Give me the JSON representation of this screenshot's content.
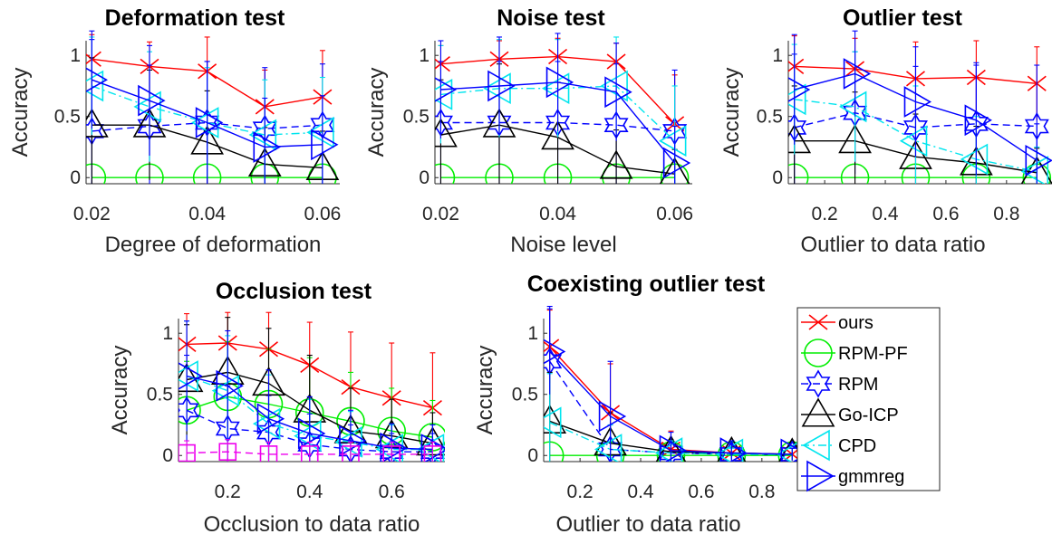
{
  "figure": {
    "legend": [
      {
        "name": "ours",
        "color": "#ff0000",
        "marker": "x",
        "dash": "solid"
      },
      {
        "name": "RPM-PF",
        "color": "#00ee00",
        "marker": "circle",
        "dash": "solid"
      },
      {
        "name": "RPM",
        "color": "#0000ff",
        "marker": "hexagram",
        "dash": "dashed"
      },
      {
        "name": "Go-ICP",
        "color": "#000000",
        "marker": "triangle-up",
        "dash": "solid"
      },
      {
        "name": "CPD",
        "color": "#00e5ee",
        "marker": "triangle-left",
        "dash": "dashdot"
      },
      {
        "name": "gmmreg",
        "color": "#0000ff",
        "marker": "triangle-right",
        "dash": "solid"
      }
    ]
  },
  "chart_data": [
    {
      "type": "line",
      "title": "Deformation test",
      "xlabel": "Degree of deformation",
      "ylabel": "Accuracy",
      "xlim": [
        0.019,
        0.063
      ],
      "ylim": [
        -0.05,
        1.12
      ],
      "xticks": [
        0.02,
        0.04,
        0.06
      ],
      "xtick_labels": [
        "0.02",
        "0.04",
        "0.06"
      ],
      "yticks": [
        0,
        0.5,
        1
      ],
      "ytick_labels": [
        "0",
        "0.5",
        "1"
      ],
      "x": [
        0.02,
        0.03,
        0.04,
        0.05,
        0.06
      ],
      "series": [
        {
          "name": "ours",
          "values": [
            0.97,
            0.91,
            0.87,
            0.58,
            0.66
          ],
          "err": [
            0.2,
            0.2,
            0.28,
            0.3,
            0.38
          ]
        },
        {
          "name": "RPM-PF",
          "values": [
            0,
            0,
            0,
            0,
            0
          ],
          "err": [
            0,
            0,
            0,
            0,
            0
          ]
        },
        {
          "name": "RPM",
          "values": [
            0.38,
            0.42,
            0.45,
            0.4,
            0.43
          ],
          "err": [
            0.75,
            0.5,
            0.5,
            0.5,
            0.5
          ]
        },
        {
          "name": "Go-ICP",
          "values": [
            0.43,
            0.43,
            0.29,
            0.11,
            0.08
          ],
          "err": [
            0.55,
            0.45,
            0.42,
            0.3,
            0.3
          ]
        },
        {
          "name": "CPD",
          "values": [
            0.75,
            0.58,
            0.45,
            0.35,
            0.37
          ],
          "err": [
            0.4,
            0.45,
            0.45,
            0.45,
            0.45
          ]
        },
        {
          "name": "gmmreg",
          "values": [
            0.8,
            0.63,
            0.45,
            0.25,
            0.27
          ],
          "err": [
            0.4,
            0.45,
            0.5,
            0.4,
            0.4
          ]
        }
      ]
    },
    {
      "type": "line",
      "title": "Noise test",
      "xlabel": "Noise level",
      "ylabel": "Accuracy",
      "xlim": [
        0.019,
        0.063
      ],
      "ylim": [
        -0.05,
        1.12
      ],
      "xticks": [
        0.02,
        0.04,
        0.06
      ],
      "xtick_labels": [
        "0.02",
        "0.04",
        "0.06"
      ],
      "yticks": [
        0,
        0.5,
        1
      ],
      "ytick_labels": [
        "0",
        "0.5",
        "1"
      ],
      "x": [
        0.02,
        0.03,
        0.04,
        0.05,
        0.06
      ],
      "series": [
        {
          "name": "ours",
          "values": [
            0.93,
            0.97,
            0.99,
            0.95,
            0.44
          ],
          "err": [
            0.15,
            0.15,
            0.15,
            0.15,
            0.4
          ]
        },
        {
          "name": "RPM-PF",
          "values": [
            0,
            0,
            0,
            0,
            0
          ],
          "err": [
            0,
            0,
            0,
            0,
            0
          ]
        },
        {
          "name": "RPM",
          "values": [
            0.45,
            0.45,
            0.45,
            0.43,
            0.38
          ],
          "err": [
            0.5,
            0.5,
            0.5,
            0.5,
            0.5
          ]
        },
        {
          "name": "Go-ICP",
          "values": [
            0.35,
            0.43,
            0.33,
            0.09,
            0.03
          ],
          "err": [
            0.45,
            0.5,
            0.45,
            0.3,
            0.2
          ]
        },
        {
          "name": "CPD",
          "values": [
            0.68,
            0.73,
            0.73,
            0.75,
            0.3
          ],
          "err": [
            0.4,
            0.4,
            0.4,
            0.4,
            0.45
          ]
        },
        {
          "name": "gmmreg",
          "values": [
            0.72,
            0.75,
            0.78,
            0.7,
            0.12
          ],
          "err": [
            0.4,
            0.4,
            0.4,
            0.4,
            0.3
          ]
        }
      ]
    },
    {
      "type": "line",
      "title": "Outlier test",
      "xlabel": "Outlier to data ratio",
      "ylabel": "Accuracy",
      "xlim": [
        0.08,
        0.95
      ],
      "ylim": [
        -0.05,
        1.12
      ],
      "xticks": [
        0.2,
        0.4,
        0.6,
        0.8
      ],
      "xtick_labels": [
        "0.2",
        "0.4",
        "0.6",
        "0.8"
      ],
      "yticks": [
        0,
        0.5,
        1
      ],
      "ytick_labels": [
        "0",
        "0.5",
        "1"
      ],
      "x": [
        0.1,
        0.3,
        0.5,
        0.7,
        0.9
      ],
      "series": [
        {
          "name": "ours",
          "values": [
            0.91,
            0.89,
            0.81,
            0.82,
            0.77
          ],
          "err": [
            0.25,
            0.25,
            0.3,
            0.3,
            0.3
          ]
        },
        {
          "name": "RPM-PF",
          "values": [
            0,
            0,
            0,
            0,
            0
          ],
          "err": [
            0,
            0,
            0,
            0,
            0
          ]
        },
        {
          "name": "RPM",
          "values": [
            0.41,
            0.53,
            0.41,
            0.44,
            0.42
          ],
          "err": [
            0.6,
            0.5,
            0.5,
            0.5,
            0.5
          ]
        },
        {
          "name": "Go-ICP",
          "values": [
            0.3,
            0.3,
            0.17,
            0.12,
            0.04
          ],
          "err": [
            0.45,
            0.4,
            0.35,
            0.3,
            0.2
          ]
        },
        {
          "name": "CPD",
          "values": [
            0.64,
            0.58,
            0.3,
            0.15,
            0.05
          ],
          "err": [
            0.45,
            0.45,
            0.45,
            0.35,
            0.2
          ]
        },
        {
          "name": "gmmreg",
          "values": [
            0.72,
            0.85,
            0.62,
            0.47,
            0.14
          ],
          "err": [
            0.45,
            0.35,
            0.45,
            0.45,
            0.3
          ]
        }
      ]
    },
    {
      "type": "line",
      "title": "Occlusion test",
      "xlabel": "Occlusion to data ratio",
      "ylabel": "Accuracy",
      "xlim": [
        0.08,
        0.73
      ],
      "ylim": [
        -0.05,
        1.12
      ],
      "xticks": [
        0.2,
        0.4,
        0.6
      ],
      "xtick_labels": [
        "0.2",
        "0.4",
        "0.6"
      ],
      "yticks": [
        0,
        0.5,
        1
      ],
      "ytick_labels": [
        "0",
        "0.5",
        "1"
      ],
      "x": [
        0.1,
        0.2,
        0.3,
        0.4,
        0.5,
        0.6,
        0.7
      ],
      "series": [
        {
          "name": "ours",
          "values": [
            0.91,
            0.92,
            0.87,
            0.74,
            0.56,
            0.47,
            0.39
          ],
          "err": [
            0.25,
            0.25,
            0.3,
            0.35,
            0.45,
            0.45,
            0.45
          ]
        },
        {
          "name": "RPM-PF",
          "values": [
            0.37,
            0.48,
            0.42,
            0.35,
            0.28,
            0.2,
            0.15
          ],
          "err": [
            0.4,
            0.45,
            0.45,
            0.45,
            0.4,
            0.35,
            0.3
          ]
        },
        {
          "name": "RPM",
          "values": [
            0.37,
            0.22,
            0.19,
            0.09,
            0.05,
            0.03,
            0.03
          ],
          "err": [
            0.45,
            0.35,
            0.3,
            0.25,
            0.2,
            0.15,
            0.15
          ]
        },
        {
          "name": "Go-ICP",
          "values": [
            0.62,
            0.68,
            0.59,
            0.37,
            0.2,
            0.16,
            0.1
          ],
          "err": [
            0.45,
            0.45,
            0.45,
            0.45,
            0.35,
            0.3,
            0.25
          ]
        },
        {
          "name": "CPD",
          "values": [
            0.65,
            0.53,
            0.26,
            0.16,
            0.11,
            0.05,
            0.05
          ],
          "err": [
            0.45,
            0.45,
            0.4,
            0.3,
            0.25,
            0.2,
            0.2
          ]
        },
        {
          "name": "gmmreg",
          "values": [
            0.65,
            0.57,
            0.3,
            0.18,
            0.12,
            0.06,
            0.05
          ],
          "err": [
            0.45,
            0.45,
            0.4,
            0.3,
            0.25,
            0.2,
            0.2
          ]
        },
        {
          "name": "",
          "color": "#ee00ee",
          "marker": "square",
          "dash": "dashed",
          "values": [
            0.02,
            0.03,
            0.01,
            0.01,
            0.01,
            0.01,
            0.01
          ],
          "err": [
            0.1,
            0.1,
            0.1,
            0.1,
            0.1,
            0.1,
            0.1
          ]
        }
      ]
    },
    {
      "type": "line",
      "title": "Coexisting outlier test",
      "xlabel": "Outlier to data ratio",
      "ylabel": "Accuracy",
      "xlim": [
        0.08,
        0.95
      ],
      "ylim": [
        -0.05,
        1.12
      ],
      "xticks": [
        0.2,
        0.4,
        0.6,
        0.8
      ],
      "xtick_labels": [
        "0.2",
        "0.4",
        "0.6",
        "0.8"
      ],
      "yticks": [
        0,
        0.5,
        1
      ],
      "ytick_labels": [
        "0",
        "0.5",
        "1"
      ],
      "x": [
        0.1,
        0.3,
        0.5,
        0.7,
        0.9
      ],
      "legend_position": "right",
      "series": [
        {
          "name": "ours",
          "values": [
            0.89,
            0.35,
            0.05,
            0.02,
            0.01
          ],
          "err": [
            0.3,
            0.4,
            0.15,
            0.1,
            0.05
          ]
        },
        {
          "name": "RPM-PF",
          "values": [
            0,
            0,
            0,
            0,
            0
          ],
          "err": [
            0,
            0,
            0,
            0,
            0
          ]
        },
        {
          "name": "RPM",
          "values": [
            0.77,
            0.05,
            0.02,
            0.01,
            0.01
          ],
          "err": [
            0.45,
            0.2,
            0.1,
            0.05,
            0.05
          ]
        },
        {
          "name": "Go-ICP",
          "values": [
            0.28,
            0.1,
            0.03,
            0.02,
            0.01
          ],
          "err": [
            0.4,
            0.25,
            0.1,
            0.05,
            0.05
          ]
        },
        {
          "name": "CPD",
          "values": [
            0.27,
            0.05,
            0.02,
            0.01,
            0.01
          ],
          "err": [
            0.4,
            0.2,
            0.1,
            0.05,
            0.05
          ]
        },
        {
          "name": "gmmreg",
          "values": [
            0.85,
            0.32,
            0.04,
            0.02,
            0.01
          ],
          "err": [
            0.35,
            0.45,
            0.15,
            0.1,
            0.05
          ]
        }
      ]
    }
  ]
}
